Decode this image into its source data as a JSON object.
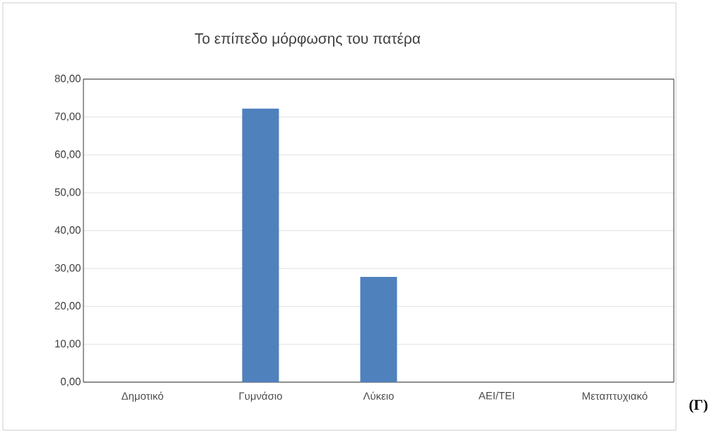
{
  "chart_data": {
    "type": "bar",
    "title": "Το επίπεδο μόρφωσης του πατέρα",
    "categories": [
      "Δημοτικό",
      "Γυμνάσιο",
      "Λύκειο",
      "ΑΕΙ/ΤΕΙ",
      "Μεταπτυχιακό"
    ],
    "values": [
      0,
      72.2,
      27.8,
      0,
      0
    ],
    "color": "#4f81bd",
    "ylim": [
      0,
      80
    ],
    "yticks": [
      {
        "value": 0,
        "label": "0,00"
      },
      {
        "value": 10,
        "label": "10,00"
      },
      {
        "value": 20,
        "label": "20,00"
      },
      {
        "value": 30,
        "label": "30,00"
      },
      {
        "value": 40,
        "label": "40,00"
      },
      {
        "value": 50,
        "label": "50,00"
      },
      {
        "value": 60,
        "label": "60,00"
      },
      {
        "value": 70,
        "label": "70,00"
      },
      {
        "value": 80,
        "label": "80,00"
      }
    ],
    "grid": "y",
    "annotations": [
      "(Γ)"
    ]
  }
}
